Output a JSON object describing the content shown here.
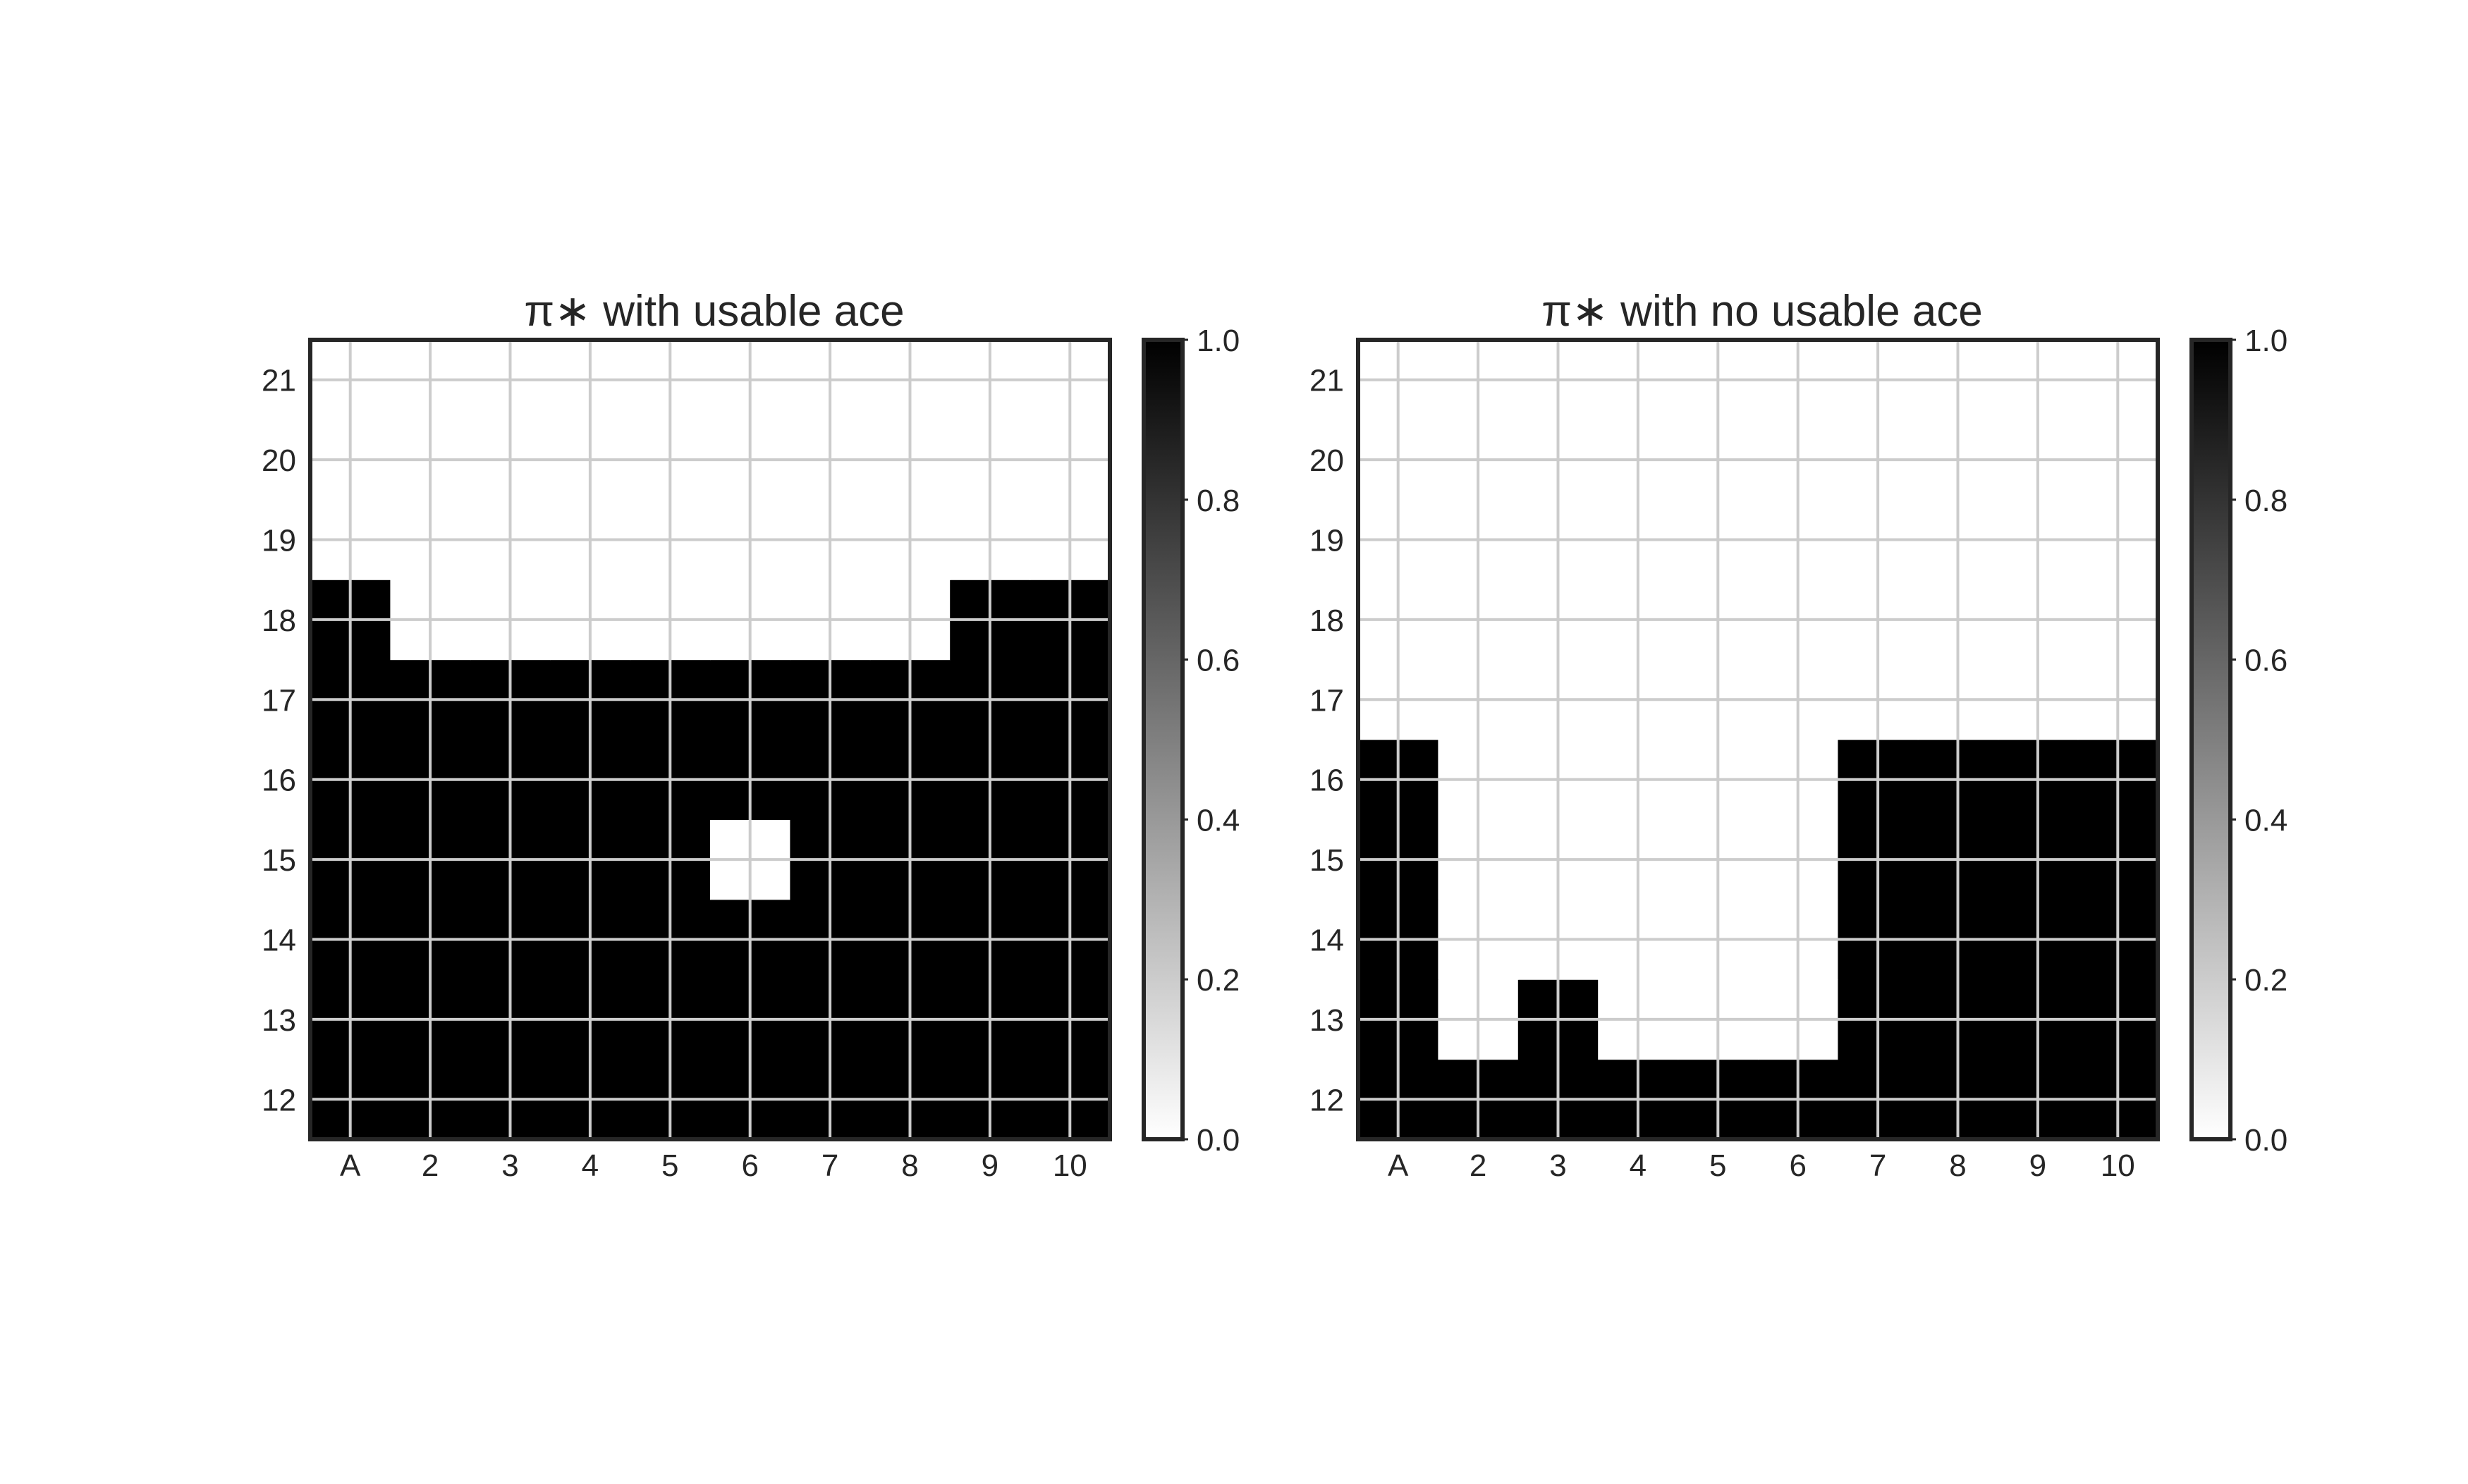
{
  "chart_data": [
    {
      "type": "heatmap",
      "title": "π∗ with usable ace",
      "x_categories": [
        "A",
        "2",
        "3",
        "4",
        "5",
        "6",
        "7",
        "8",
        "9",
        "10"
      ],
      "y_categories": [
        "12",
        "13",
        "14",
        "15",
        "16",
        "17",
        "18",
        "19",
        "20",
        "21"
      ],
      "values": [
        [
          1,
          1,
          1,
          1,
          1,
          1,
          1,
          1,
          1,
          1
        ],
        [
          1,
          1,
          1,
          1,
          1,
          1,
          1,
          1,
          1,
          1
        ],
        [
          1,
          1,
          1,
          1,
          1,
          1,
          1,
          1,
          1,
          1
        ],
        [
          1,
          1,
          1,
          1,
          1,
          0,
          1,
          1,
          1,
          1
        ],
        [
          1,
          1,
          1,
          1,
          1,
          1,
          1,
          1,
          1,
          1
        ],
        [
          1,
          1,
          1,
          1,
          1,
          1,
          1,
          1,
          1,
          1
        ],
        [
          1,
          0,
          0,
          0,
          0,
          0,
          0,
          0,
          1,
          1
        ],
        [
          0,
          0,
          0,
          0,
          0,
          0,
          0,
          0,
          0,
          0
        ],
        [
          0,
          0,
          0,
          0,
          0,
          0,
          0,
          0,
          0,
          0
        ],
        [
          0,
          0,
          0,
          0,
          0,
          0,
          0,
          0,
          0,
          0
        ]
      ],
      "colorbar": {
        "range": [
          0.0,
          1.0
        ],
        "ticks": [
          "0.0",
          "0.2",
          "0.4",
          "0.6",
          "0.8",
          "1.0"
        ],
        "colormap": "white-to-black"
      },
      "grid": true
    },
    {
      "type": "heatmap",
      "title": "π∗ with no usable ace",
      "x_categories": [
        "A",
        "2",
        "3",
        "4",
        "5",
        "6",
        "7",
        "8",
        "9",
        "10"
      ],
      "y_categories": [
        "12",
        "13",
        "14",
        "15",
        "16",
        "17",
        "18",
        "19",
        "20",
        "21"
      ],
      "values": [
        [
          1,
          1,
          1,
          1,
          1,
          1,
          1,
          1,
          1,
          1
        ],
        [
          1,
          0,
          1,
          0,
          0,
          0,
          1,
          1,
          1,
          1
        ],
        [
          1,
          0,
          0,
          0,
          0,
          0,
          1,
          1,
          1,
          1
        ],
        [
          1,
          0,
          0,
          0,
          0,
          0,
          1,
          1,
          1,
          1
        ],
        [
          1,
          0,
          0,
          0,
          0,
          0,
          1,
          1,
          1,
          1
        ],
        [
          0,
          0,
          0,
          0,
          0,
          0,
          0,
          0,
          0,
          0
        ],
        [
          0,
          0,
          0,
          0,
          0,
          0,
          0,
          0,
          0,
          0
        ],
        [
          0,
          0,
          0,
          0,
          0,
          0,
          0,
          0,
          0,
          0
        ],
        [
          0,
          0,
          0,
          0,
          0,
          0,
          0,
          0,
          0,
          0
        ],
        [
          0,
          0,
          0,
          0,
          0,
          0,
          0,
          0,
          0,
          0
        ]
      ],
      "colorbar": {
        "range": [
          0.0,
          1.0
        ],
        "ticks": [
          "0.0",
          "0.2",
          "0.4",
          "0.6",
          "0.8",
          "1.0"
        ],
        "colormap": "white-to-black"
      },
      "grid": true
    }
  ],
  "colors": {
    "high": "#000000",
    "low": "#ffffff",
    "grid": "#cccccc",
    "frame": "#262626",
    "text": "#262626"
  }
}
